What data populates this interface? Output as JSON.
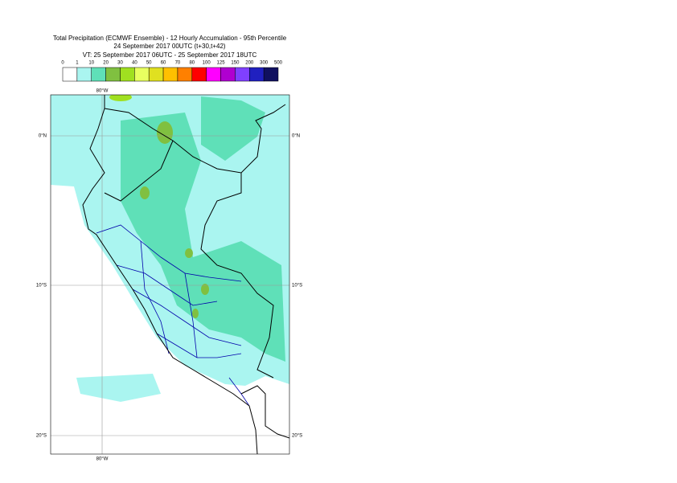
{
  "header": {
    "title": "Total Precipitation (ECMWF Ensemble) - 12 Hourly Accumulation - 95th Percentile",
    "subtitle": "24 September 2017 00UTC (t+30,t+42)",
    "valid_time": "VT: 25 September 2017 06UTC - 25 September 2017 18UTC"
  },
  "legend": {
    "thresholds": [
      0,
      1,
      10,
      20,
      30,
      40,
      50,
      60,
      70,
      80,
      100,
      125,
      150,
      200,
      300,
      500
    ],
    "colors": [
      "#ffffff",
      "#aaf5f0",
      "#5fe0b8",
      "#80c040",
      "#a0e020",
      "#e8ff60",
      "#e0e020",
      "#ffc000",
      "#ff8000",
      "#ff0000",
      "#ff00ff",
      "#b000d0",
      "#8040ff",
      "#2020c0",
      "#101060"
    ]
  },
  "map": {
    "lon_label_top": "80°W",
    "lon_label_bottom": "80°W",
    "lat_labels": [
      "0°N",
      "10°S",
      "20°S"
    ]
  }
}
